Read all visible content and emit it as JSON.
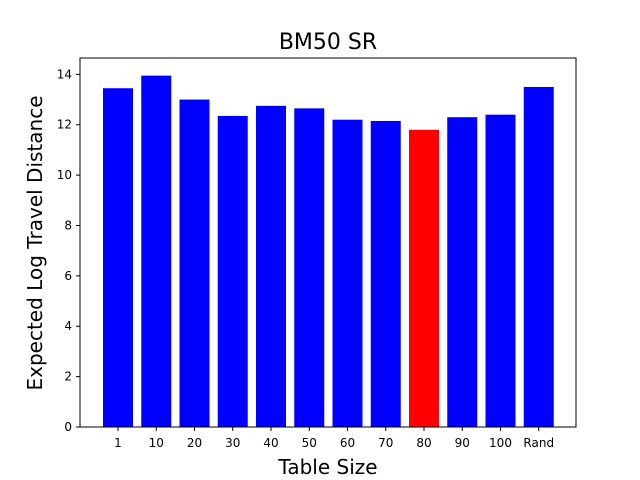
{
  "chart_data": {
    "type": "bar",
    "title": "BM50 SR",
    "xlabel": "Table Size",
    "ylabel": "Expected Log Travel Distance",
    "categories": [
      "1",
      "10",
      "20",
      "30",
      "40",
      "50",
      "60",
      "70",
      "80",
      "90",
      "100",
      "Rand"
    ],
    "values": [
      13.45,
      13.95,
      13.0,
      12.35,
      12.75,
      12.65,
      12.2,
      12.15,
      11.8,
      12.3,
      12.4,
      13.5
    ],
    "colors": [
      "#0000ff",
      "#0000ff",
      "#0000ff",
      "#0000ff",
      "#0000ff",
      "#0000ff",
      "#0000ff",
      "#0000ff",
      "#ff0000",
      "#0000ff",
      "#0000ff",
      "#0000ff"
    ],
    "ylim": [
      0,
      14.65
    ],
    "yticks": [
      0,
      2,
      4,
      6,
      8,
      10,
      12,
      14
    ],
    "grid": false
  }
}
